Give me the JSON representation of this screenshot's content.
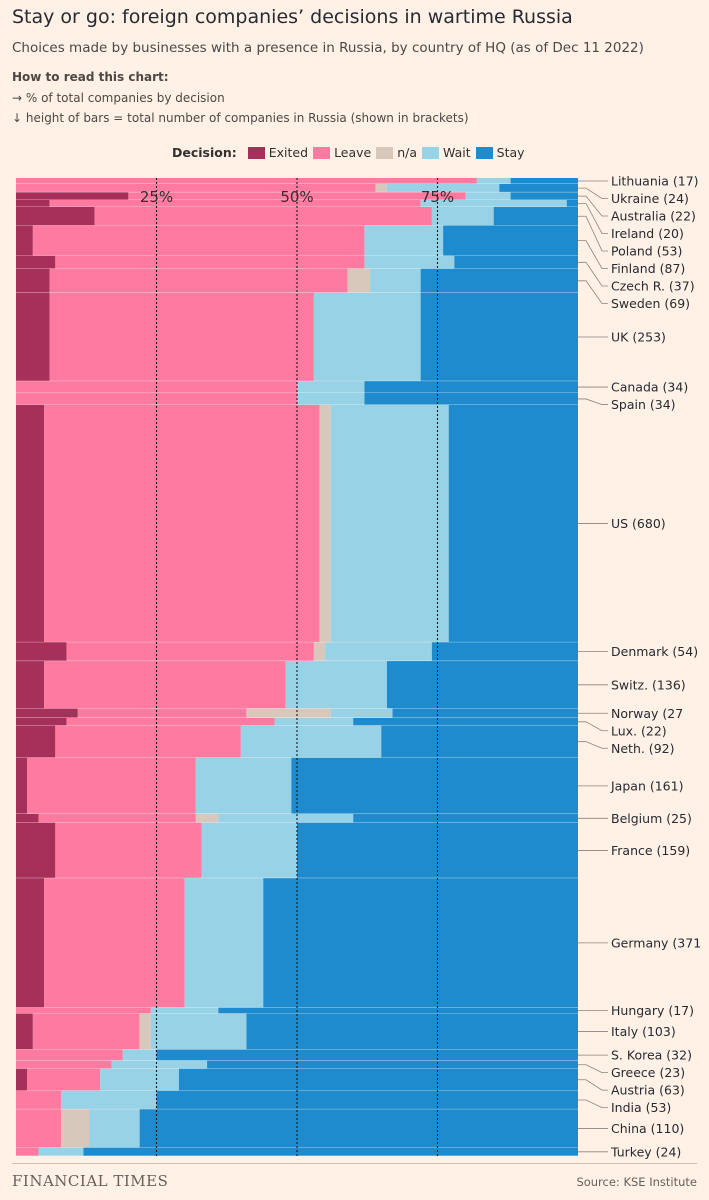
{
  "title": "Stay or go: foreign companies’ decisions in wartime Russia",
  "subtitle": "Choices made by businesses with a presence in Russia, by country of HQ (as of Dec 11 2022)",
  "how_to_read": {
    "heading": "How to read this chart:",
    "line1": "→ % of total companies by decision",
    "line2": "↓ height of bars = total number of companies in Russia (shown in brackets)"
  },
  "legend": {
    "title": "Decision:",
    "items": [
      {
        "label": "Exited",
        "color": "#a7305a"
      },
      {
        "label": "Leave",
        "color": "#ff7aa0"
      },
      {
        "label": "n/a",
        "color": "#d8c8bc"
      },
      {
        "label": "Wait",
        "color": "#98d2e6"
      },
      {
        "label": "Stay",
        "color": "#1e8bce"
      }
    ]
  },
  "chart_data": {
    "type": "mekko",
    "x_ticks": [
      "25%",
      "50%",
      "75%"
    ],
    "series": [
      "Exited",
      "Leave",
      "n/a",
      "Wait",
      "Stay"
    ],
    "rows": [
      {
        "label": "Lithuania (17)",
        "values": [
          0,
          82,
          0,
          6,
          12
        ]
      },
      {
        "label": "Ukraine (24)",
        "values": [
          0,
          64,
          2,
          20,
          14
        ]
      },
      {
        "label": "Australia (22)",
        "values": [
          20,
          60,
          0,
          8,
          12
        ]
      },
      {
        "label": "Ireland (20)",
        "values": [
          6,
          66,
          0,
          26,
          2
        ]
      },
      {
        "label": "Poland (53)",
        "values": [
          14,
          60,
          0,
          11,
          15
        ]
      },
      {
        "label": "Finland (87)",
        "values": [
          3,
          59,
          0,
          14,
          24
        ]
      },
      {
        "label": "Czech R. (37)",
        "values": [
          7,
          55,
          0,
          16,
          22
        ]
      },
      {
        "label": "Sweden (69)",
        "values": [
          6,
          53,
          4,
          9,
          28
        ]
      },
      {
        "label": "UK (253)",
        "values": [
          6,
          47,
          0,
          19,
          28
        ]
      },
      {
        "label": "Canada (34)",
        "values": [
          0,
          50,
          0,
          12,
          38
        ]
      },
      {
        "label": "Spain (34)",
        "values": [
          0,
          50,
          0,
          12,
          38
        ]
      },
      {
        "label": "US (680)",
        "values": [
          5,
          49,
          2,
          21,
          23
        ]
      },
      {
        "label": "Denmark (54)",
        "values": [
          9,
          44,
          2,
          19,
          26
        ]
      },
      {
        "label": "Switz. (136)",
        "values": [
          5,
          43,
          0,
          18,
          34
        ]
      },
      {
        "label": "Norway (27",
        "values": [
          11,
          30,
          15,
          11,
          33
        ]
      },
      {
        "label": "Lux. (22)",
        "values": [
          9,
          37,
          0,
          14,
          40
        ]
      },
      {
        "label": "Neth. (92)",
        "values": [
          7,
          33,
          0,
          25,
          35
        ]
      },
      {
        "label": "Japan (161)",
        "values": [
          2,
          30,
          0,
          17,
          51
        ]
      },
      {
        "label": "Belgium (25)",
        "values": [
          4,
          28,
          4,
          24,
          40
        ]
      },
      {
        "label": "France (159)",
        "values": [
          7,
          26,
          0,
          17,
          50
        ]
      },
      {
        "label": "Germany (371",
        "values": [
          5,
          25,
          0,
          14,
          56
        ]
      },
      {
        "label": "Hungary (17)",
        "values": [
          0,
          24,
          0,
          12,
          64
        ]
      },
      {
        "label": "Italy (103)",
        "values": [
          3,
          19,
          2,
          17,
          59
        ]
      },
      {
        "label": "S. Korea (32)",
        "values": [
          0,
          19,
          0,
          6,
          75
        ]
      },
      {
        "label": "Greece (23)",
        "values": [
          0,
          17,
          0,
          17,
          66
        ]
      },
      {
        "label": "Austria (63)",
        "values": [
          2,
          13,
          0,
          14,
          71
        ]
      },
      {
        "label": "India (53)",
        "values": [
          0,
          8,
          0,
          17,
          75
        ]
      },
      {
        "label": "China (110)",
        "values": [
          0,
          8,
          5,
          9,
          78
        ]
      },
      {
        "label": "Turkey (24)",
        "values": [
          0,
          4,
          0,
          8,
          88
        ]
      }
    ]
  },
  "footer": {
    "brand": "FINANCIAL TIMES",
    "source": "Source: KSE Institute"
  }
}
